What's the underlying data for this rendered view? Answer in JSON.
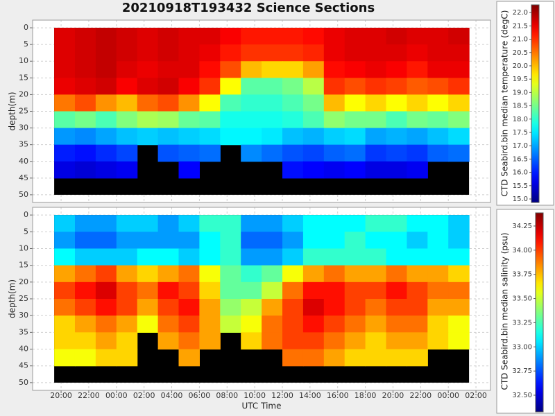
{
  "title": "20210918T193432 Science Sections",
  "chart_data": [
    {
      "type": "heatmap",
      "colormap": "jet",
      "y_label": "depth(m)",
      "sharex": true,
      "ylim": [
        -2.3,
        52.3
      ],
      "y_inverted": true,
      "yticks": [
        0,
        5,
        10,
        15,
        20,
        25,
        30,
        35,
        40,
        45,
        50
      ],
      "grid": true,
      "xlim": [
        17.94,
        51.05
      ],
      "x_bins": [
        19.5,
        21,
        22.5,
        24,
        25.5,
        27,
        28.5,
        30,
        31.5,
        33,
        34.5,
        36,
        37.5,
        39,
        40.5,
        42,
        43.5,
        45,
        46.5,
        48,
        49.5
      ],
      "depth_bins": [
        0,
        5,
        10,
        15,
        20,
        25,
        30,
        35,
        40,
        45,
        50
      ],
      "values": [
        [
          21.6,
          21.7,
          21.8,
          21.7,
          21.6,
          21.7,
          21.6,
          21.6,
          21.4,
          21.2,
          21.2,
          21.2,
          21.3,
          21.5,
          21.6,
          21.6,
          21.7,
          21.6,
          21.6,
          21.7
        ],
        [
          21.6,
          21.7,
          21.8,
          21.7,
          21.6,
          21.7,
          21.6,
          21.5,
          21.2,
          21.0,
          21.0,
          21.0,
          21.1,
          21.5,
          21.6,
          21.6,
          21.6,
          21.5,
          21.6,
          21.6
        ],
        [
          21.6,
          21.7,
          21.8,
          21.6,
          21.5,
          21.6,
          21.6,
          21.3,
          20.8,
          20.0,
          19.8,
          19.8,
          20.2,
          21.3,
          21.4,
          21.5,
          21.4,
          21.2,
          21.5,
          21.5
        ],
        [
          21.5,
          21.6,
          21.7,
          21.4,
          21.6,
          21.7,
          21.4,
          21.0,
          19.5,
          18.3,
          18.3,
          18.5,
          19.0,
          21.0,
          20.8,
          21.0,
          20.9,
          20.7,
          20.8,
          21.0
        ],
        [
          20.5,
          20.8,
          20.3,
          20.0,
          20.6,
          20.8,
          20.3,
          19.5,
          18.2,
          18.0,
          18.0,
          18.2,
          18.5,
          20.0,
          19.5,
          19.8,
          19.5,
          19.8,
          19.5,
          19.8
        ],
        [
          18.3,
          18.5,
          18.2,
          18.6,
          18.9,
          18.8,
          18.4,
          18.3,
          17.8,
          17.8,
          17.8,
          17.9,
          18.2,
          18.7,
          18.5,
          18.5,
          18.2,
          18.5,
          18.4,
          18.6
        ],
        [
          16.9,
          16.8,
          17.0,
          17.2,
          17.3,
          17.2,
          17.3,
          17.4,
          17.6,
          17.6,
          17.5,
          17.2,
          17.1,
          17.3,
          17.4,
          17.0,
          17.1,
          17.0,
          17.2,
          17.4
        ],
        [
          16.0,
          15.9,
          16.1,
          16.3,
          null,
          16.4,
          16.5,
          16.6,
          null,
          16.8,
          16.6,
          16.4,
          16.3,
          16.5,
          16.6,
          16.2,
          16.3,
          16.2,
          16.5,
          16.6
        ],
        [
          15.6,
          15.5,
          15.6,
          15.7,
          null,
          null,
          15.8,
          null,
          null,
          null,
          null,
          15.9,
          15.8,
          15.7,
          15.8,
          15.6,
          15.6,
          15.7,
          null,
          null
        ],
        [
          null,
          null,
          null,
          null,
          null,
          null,
          null,
          null,
          null,
          null,
          null,
          null,
          null,
          null,
          null,
          null,
          null,
          null,
          null,
          null
        ]
      ],
      "colorbar": {
        "label": "CTD Seabird.bin median temperature (degC)",
        "clim": [
          14.87,
          22.29
        ],
        "ticks": [
          {
            "value": 15,
            "label": "15.0"
          },
          15.5,
          {
            "value": 16,
            "label": "16.0"
          },
          16.5,
          {
            "value": 17,
            "label": "17.0"
          },
          17.5,
          {
            "value": 18,
            "label": "18.0"
          },
          18.5,
          {
            "value": 19,
            "label": "19.0"
          },
          19.5,
          {
            "value": 20,
            "label": "20.0"
          },
          20.5,
          {
            "value": 21,
            "label": "21.0"
          },
          21.5,
          {
            "value": 22,
            "label": "22.0"
          }
        ]
      }
    },
    {
      "type": "heatmap",
      "colormap": "jet",
      "y_label": "depth(m)",
      "x_label": "UTC Time",
      "ylim": [
        -2.3,
        52.3
      ],
      "y_inverted": true,
      "yticks": [
        0,
        5,
        10,
        15,
        20,
        25,
        30,
        35,
        40,
        45,
        50
      ],
      "grid": true,
      "xlim": [
        17.94,
        51.05
      ],
      "xticks": [
        {
          "value": 20,
          "label": "20:00"
        },
        {
          "value": 22,
          "label": "22:00"
        },
        {
          "value": 24,
          "label": "00:00"
        },
        {
          "value": 26,
          "label": "02:00"
        },
        {
          "value": 28,
          "label": "04:00"
        },
        {
          "value": 30,
          "label": "06:00"
        },
        {
          "value": 32,
          "label": "08:00"
        },
        {
          "value": 34,
          "label": "10:00"
        },
        {
          "value": 36,
          "label": "12:00"
        },
        {
          "value": 38,
          "label": "14:00"
        },
        {
          "value": 40,
          "label": "16:00"
        },
        {
          "value": 42,
          "label": "18:00"
        },
        {
          "value": 44,
          "label": "20:00"
        },
        {
          "value": 46,
          "label": "22:00"
        },
        {
          "value": 48,
          "label": "00:00"
        },
        {
          "value": 50,
          "label": "02:00"
        }
      ],
      "x_bins": [
        19.5,
        21,
        22.5,
        24,
        25.5,
        27,
        28.5,
        30,
        31.5,
        33,
        34.5,
        36,
        37.5,
        39,
        40.5,
        42,
        43.5,
        45,
        46.5,
        48,
        49.5
      ],
      "depth_bins": [
        0,
        5,
        10,
        15,
        20,
        25,
        30,
        35,
        40,
        45,
        50
      ],
      "values": [
        [
          33.0,
          32.9,
          32.9,
          33.0,
          33.0,
          32.9,
          33.0,
          33.2,
          33.2,
          32.9,
          32.9,
          33.0,
          33.1,
          33.1,
          33.1,
          33.2,
          33.2,
          33.1,
          33.1,
          33.0
        ],
        [
          32.9,
          32.8,
          32.8,
          32.9,
          32.9,
          32.9,
          32.9,
          33.1,
          33.2,
          32.8,
          32.8,
          32.9,
          33.1,
          33.1,
          33.2,
          33.1,
          33.1,
          33.0,
          33.1,
          33.0
        ],
        [
          33.1,
          33.0,
          33.0,
          33.0,
          33.1,
          33.1,
          33.0,
          33.1,
          33.2,
          32.9,
          32.9,
          33.0,
          33.2,
          33.2,
          33.2,
          33.2,
          33.1,
          33.1,
          33.1,
          33.1
        ],
        [
          33.8,
          33.9,
          34.0,
          33.8,
          33.7,
          33.8,
          33.9,
          33.6,
          33.3,
          33.2,
          33.3,
          33.6,
          33.8,
          33.9,
          33.8,
          33.8,
          33.9,
          33.8,
          33.8,
          33.7
        ],
        [
          34.0,
          34.1,
          34.2,
          34.0,
          33.9,
          34.1,
          34.0,
          33.7,
          33.3,
          33.3,
          33.5,
          33.9,
          34.1,
          34.1,
          34.0,
          34.0,
          34.1,
          34.0,
          33.9,
          33.9
        ],
        [
          33.9,
          34.0,
          34.1,
          34.0,
          33.8,
          34.0,
          34.1,
          33.8,
          33.4,
          33.5,
          33.8,
          34.0,
          34.2,
          34.1,
          34.0,
          33.9,
          34.0,
          34.0,
          33.8,
          33.8
        ],
        [
          33.7,
          33.8,
          33.9,
          33.8,
          33.6,
          33.9,
          34.0,
          33.8,
          33.5,
          33.6,
          33.9,
          34.0,
          34.1,
          34.0,
          33.9,
          33.8,
          33.9,
          33.9,
          33.7,
          33.6
        ],
        [
          33.7,
          33.7,
          33.8,
          33.7,
          null,
          33.8,
          33.9,
          33.8,
          null,
          33.7,
          33.9,
          34.0,
          34.0,
          33.9,
          33.8,
          33.7,
          33.8,
          33.8,
          33.7,
          33.6
        ],
        [
          33.6,
          33.6,
          33.7,
          33.7,
          null,
          null,
          33.8,
          null,
          null,
          null,
          null,
          33.9,
          33.9,
          33.8,
          33.7,
          33.7,
          33.7,
          33.7,
          null,
          null
        ],
        [
          null,
          null,
          null,
          null,
          null,
          null,
          null,
          null,
          null,
          null,
          null,
          null,
          null,
          null,
          null,
          null,
          null,
          null,
          null,
          null
        ]
      ],
      "colorbar": {
        "label": "CTD Seabird.bin median salinity (psu)",
        "clim": [
          32.328,
          34.386
        ],
        "ticks": [
          {
            "value": 32.5,
            "label": "32.50"
          },
          32.75,
          {
            "value": 33,
            "label": "33.00"
          },
          33.25,
          {
            "value": 33.5,
            "label": "33.50"
          },
          33.75,
          {
            "value": 34,
            "label": "34.00"
          },
          34.25
        ]
      }
    }
  ]
}
